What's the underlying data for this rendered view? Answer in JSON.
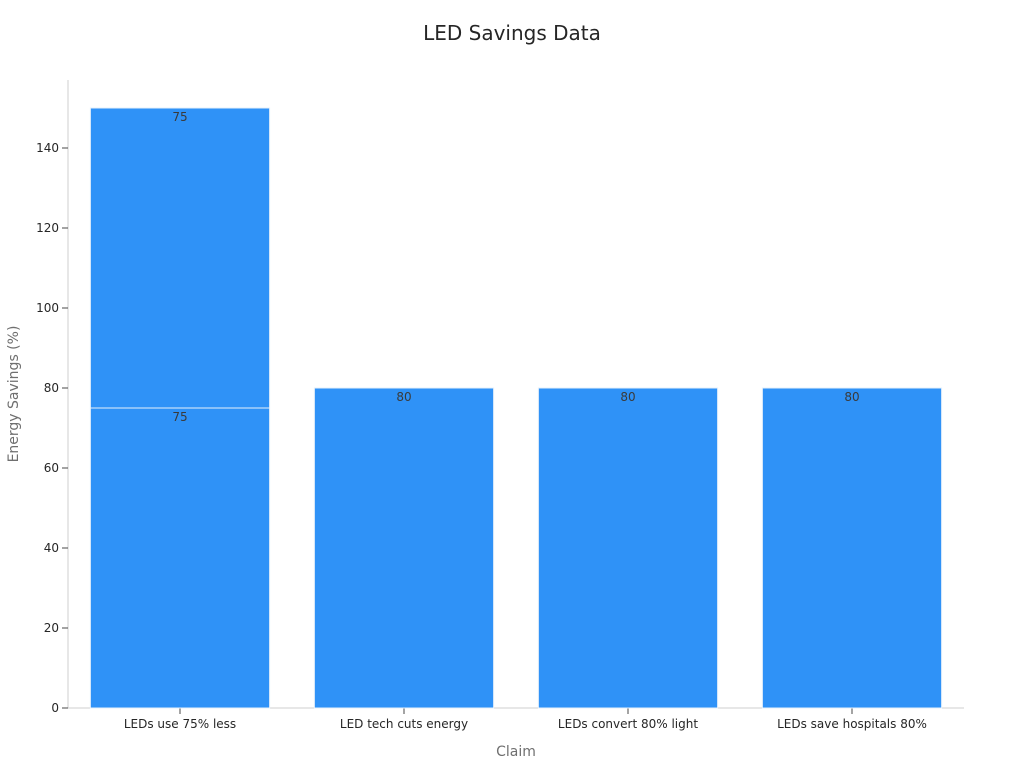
{
  "chart_data": {
    "type": "bar",
    "stacked": true,
    "title": "LED Savings Data",
    "xlabel": "Claim",
    "ylabel": "Energy Savings (%)",
    "ylim": [
      0,
      157
    ],
    "yticks": [
      0,
      20,
      40,
      60,
      80,
      100,
      120,
      140
    ],
    "grid": false,
    "legend": "none",
    "categories": [
      "LEDs use 75% less",
      "LED tech cuts energy",
      "LEDs convert 80% light",
      "LEDs save hospitals 80%"
    ],
    "series": [
      {
        "values": [
          75,
          80,
          80,
          80
        ],
        "color": "#2f92f7"
      },
      {
        "values": [
          75,
          0,
          0,
          0
        ],
        "color": "#2f92f7"
      }
    ]
  }
}
